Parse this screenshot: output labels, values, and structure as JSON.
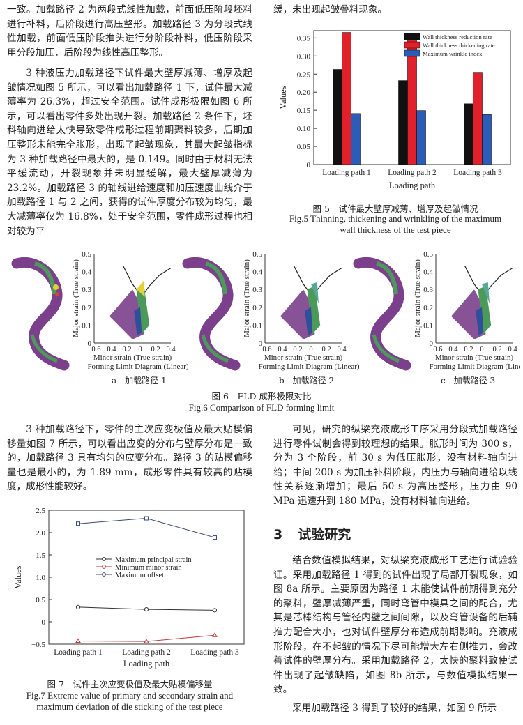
{
  "text": {
    "p1": "一致。加载路径 2 为两段式线性加载，前面低压阶段坯料进行补料，后阶段进行高压整形。加载路径 3 为分段式线性加载，前面低压阶段推头进行分阶段补料，低压阶段采用分段加压，后阶段为线性高压整形。",
    "p2": "3 种液压力加载路径下试件最大壁厚减薄、增厚及起皱情况如图 5 所示，可以看出加载路径 1 下，试件最大减薄率为 26.3%，超过安全范围。试件成形极限如图 6 所示，可以看出零件多处出现开裂。加载路径 2 条件下，坯料轴向进给太快导致零件成形过程前期聚料较多，后期加压整形未能完全胀形，出现了起皱现象，其最大起皱指标为 3 种加载路径中最大的，是 0.149。同时由于材料无法平缓流动，开裂现象并未明显缓解，最大壁厚减薄为 23.2%。加载路径 3 的轴线进给速度和加压速度曲线介于加载路径 1 与 2 之间，获得的试件厚度分布较为均匀，最大减薄率仅为 16.8%，处于安全范围，零件成形过程也相对较为平",
    "p3": "缓，未出现起皱叠料现象。",
    "p4": "3 种加载路径下，零件的主次应变极值及最大贴模偏移量如图 7 所示，可以看出应变的分布与壁厚分布是一致的，加载路径 3 具有均匀的应变分布。路径 3 的贴模偏移量也是最小的，为 1.89 mm，成形零件具有较高的贴模度，成形性能较好。",
    "p5": "可见，研究的纵梁充液成形工序采用分段式加载路径进行零件试制会得到较理想的结果。胀形时间为 300 s，分为 3 个阶段，前 30 s 为低压胀形，没有材料轴向进给；中间 200 s 为加压补料阶段，内压力与轴向进给以线性关系逐渐增加；最后 50 s 为高压整形，压力由 90 MPa 迅速升到 180 MPa，没有材料轴向进给。",
    "section_number": "3",
    "section_title": "试验研究",
    "p6": "结合数值模拟结果，对纵梁充液成形工艺进行试验验证。采用加载路径 1 得到的试件出现了局部开裂现象，如图 8a 所示。主要原因为路径 1 未能使试件前期得到充分的聚料，壁厚减薄严重，同时弯管中模具之间的配合，尤其是芯棒结构与管径内壁之间间隙，以及弯管设备的后辅推力配合大小，也对试件壁厚分布造成前期影响。充液成形阶段，在不起皱的情况下尽可能增大左右侧推力，会改善试件的壁厚分布。采用加载路径 2，太快的聚料致使试件出现了起皱缺陷，如图 8b 所示，与数值模拟结果一致。",
    "p7": "采用加载路径 3 得到了较好的结果，如图 9 所示"
  },
  "fig5": {
    "caption_zh": "图 5　试件最大壁厚减薄、增厚及起皱情况",
    "caption_en_1": "Fig.5 Thinning, thickening and wrinkling of the maximum",
    "caption_en_2": "wall thickness of the test piece"
  },
  "fig6": {
    "caption_zh": "图 6　FLD 成形极限对比",
    "caption_en": "Fig.6 Comparison of FLD forming limit",
    "sub_a": "a　加载路径 1",
    "sub_b": "b　加载路径 2",
    "sub_c": "c　加载路径 3",
    "panel": {
      "ylabel": "Major strain (True strain)",
      "xlabel": "Minor strain (True strain)",
      "title": "Forming Limit Diagram (Linear)",
      "xticks": [
        "−0.6",
        "−0.4",
        "−0.2",
        "0",
        "0.2",
        "0.4"
      ],
      "yticks": [
        "0",
        "0.1",
        "0.2",
        "0.3",
        "0.4",
        "0.5"
      ]
    }
  },
  "fig7": {
    "caption_zh": "图 7　试件主次应变极值及最大贴模偏移量",
    "caption_en_1": "Fig.7 Extreme value of primary and secondary strain and",
    "caption_en_2": "maximum deviation of die sticking of the test piece"
  },
  "chart_data": [
    {
      "type": "bar",
      "categories": [
        "Loading path 1",
        "Loading path 2",
        "Loading path 3"
      ],
      "xlabel": "Loading path",
      "ylabel": "Values",
      "ylim": [
        0,
        0.37
      ],
      "yticks": [
        0,
        0.05,
        0.1,
        0.15,
        0.2,
        0.25,
        0.3,
        0.35
      ],
      "ytick_labels": [
        "0",
        "0.05",
        "0.10",
        "0.15",
        "0.20",
        "0.25",
        "0.30",
        "0.35"
      ],
      "legend_position": "top-right",
      "series": [
        {
          "name": "Wall thickness reduction rate",
          "color": "#111111",
          "values": [
            0.263,
            0.232,
            0.168
          ]
        },
        {
          "name": "Wall thickness thickening rate",
          "color": "#e0202a",
          "values": [
            0.365,
            0.36,
            0.255
          ]
        },
        {
          "name": "Maximum wrinkle index",
          "color": "#2a5cb8",
          "values": [
            0.141,
            0.149,
            0.138
          ]
        }
      ]
    },
    {
      "type": "line",
      "categories": [
        "Loading path 1",
        "Loading path 2",
        "Loading path 3"
      ],
      "xlabel": "Loading path",
      "ylabel": "Values",
      "ylim": [
        -0.5,
        2.5
      ],
      "yticks": [
        -0.5,
        0,
        0.5,
        1.0,
        1.5,
        2.0,
        2.5
      ],
      "ytick_labels": [
        "−0.5",
        "0",
        "0.5",
        "1.0",
        "1.5",
        "2.0",
        "2.5"
      ],
      "legend_position": "center-left",
      "series": [
        {
          "name": "Maximum principal strain",
          "color": "#333333",
          "values": [
            0.33,
            0.28,
            0.26
          ]
        },
        {
          "name": "Minimum minor strain",
          "color": "#c0393b",
          "values": [
            -0.43,
            -0.44,
            -0.3
          ]
        },
        {
          "name": "Maximum offset",
          "color": "#3a4a7a",
          "values": [
            2.2,
            2.32,
            1.89
          ]
        }
      ]
    }
  ]
}
